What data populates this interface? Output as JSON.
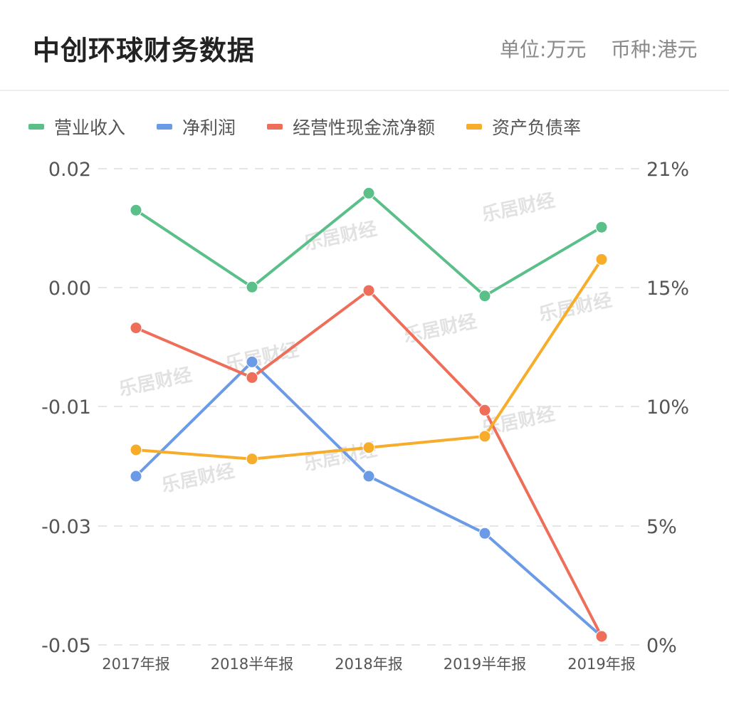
{
  "header": {
    "title": "中创环球财务数据",
    "unit": "单位:万元",
    "currency": "币种:港元"
  },
  "legend": [
    {
      "label": "营业收入",
      "color": "#5bbf8a"
    },
    {
      "label": "净利润",
      "color": "#6b9be6"
    },
    {
      "label": "经营性现金流净额",
      "color": "#ef6e5a"
    },
    {
      "label": "资产负债率",
      "color": "#f7ac2a"
    }
  ],
  "watermark": "乐居财经",
  "chart_data": {
    "type": "line",
    "categories": [
      "2017年报",
      "2018半年报",
      "2018年报",
      "2019半年报",
      "2019年报"
    ],
    "y_left": {
      "tick_labels": [
        "0.02",
        "0.00",
        "-0.01",
        "-0.03",
        "-0.05"
      ],
      "ylim": [
        -0.05,
        0.02
      ]
    },
    "y_right": {
      "tick_labels": [
        "21%",
        "15%",
        "10%",
        "5%",
        "0%"
      ],
      "ylim": [
        0,
        21
      ]
    },
    "grid": true,
    "legend_position": "top",
    "series": [
      {
        "name": "营业收入",
        "axis": "left",
        "color": "#5bbf8a",
        "values": [
          0.0139,
          0.0026,
          0.0164,
          0.0013,
          0.0114
        ]
      },
      {
        "name": "净利润",
        "axis": "left",
        "color": "#6b9be6",
        "values": [
          -0.0252,
          -0.0084,
          -0.0252,
          -0.0336,
          -0.0508
        ]
      },
      {
        "name": "经营性现金流净额",
        "axis": "left",
        "color": "#ef6e5a",
        "values": [
          -0.0034,
          -0.0107,
          0.0021,
          -0.0155,
          -0.0582
        ]
      },
      {
        "name": "资产负债率",
        "axis": "right",
        "color": "#f7ac2a",
        "values": [
          8.6,
          8.2,
          8.7,
          9.2,
          17.0
        ]
      }
    ]
  }
}
